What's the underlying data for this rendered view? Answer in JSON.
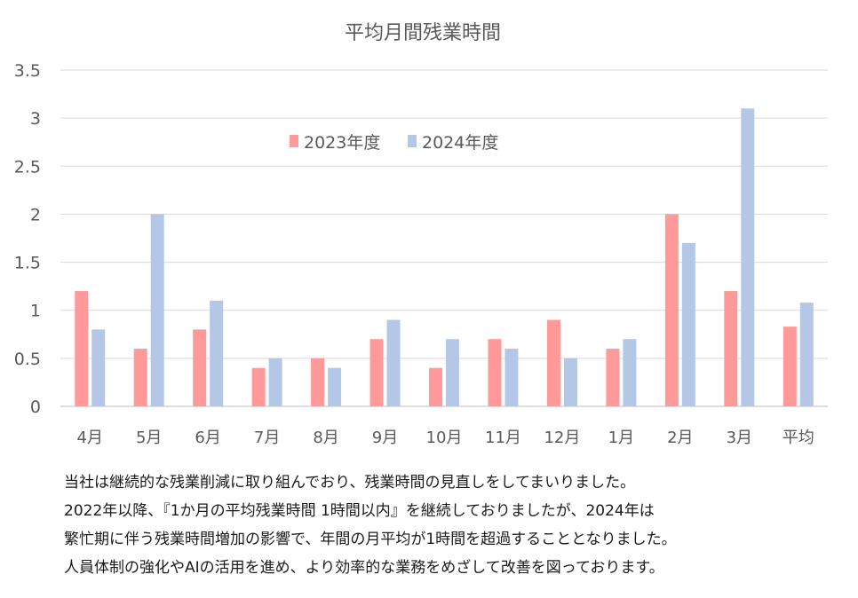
{
  "chart_data": {
    "type": "bar",
    "title": "平均月間残業時間",
    "xlabel": "",
    "ylabel": "",
    "ylim": [
      0,
      3.5
    ],
    "yticks": [
      "0",
      "0.5",
      "1",
      "1.5",
      "2",
      "2.5",
      "3",
      "3.5"
    ],
    "grid": true,
    "legend_position": "top-center",
    "categories": [
      "4月",
      "5月",
      "6月",
      "7月",
      "8月",
      "9月",
      "10月",
      "11月",
      "12月",
      "1月",
      "2月",
      "3月",
      "平均"
    ],
    "series": [
      {
        "name": "2023年度",
        "color": "#FF999A",
        "values": [
          1.2,
          0.6,
          0.8,
          0.4,
          0.5,
          0.7,
          0.4,
          0.7,
          0.9,
          0.6,
          2.0,
          1.2,
          0.83
        ]
      },
      {
        "name": "2024年度",
        "color": "#B4C7E7",
        "values": [
          0.8,
          2.0,
          1.1,
          0.5,
          0.4,
          0.9,
          0.7,
          0.6,
          0.5,
          0.7,
          1.7,
          3.1,
          1.08
        ]
      }
    ]
  },
  "notes": [
    "当社は継続的な残業削減に取り組んでおり、残業時間の見直しをしてまいりました。",
    "2022年以降、『1か月の平均残業時間 1時間以内』を継続しておりましたが、2024年は",
    "繁忙期に伴う残業時間増加の影響で、年間の月平均が1時間を超過することとなりました。",
    "人員体制の強化やAIの活用を進め、より効率的な業務をめざして改善を図っております。"
  ]
}
